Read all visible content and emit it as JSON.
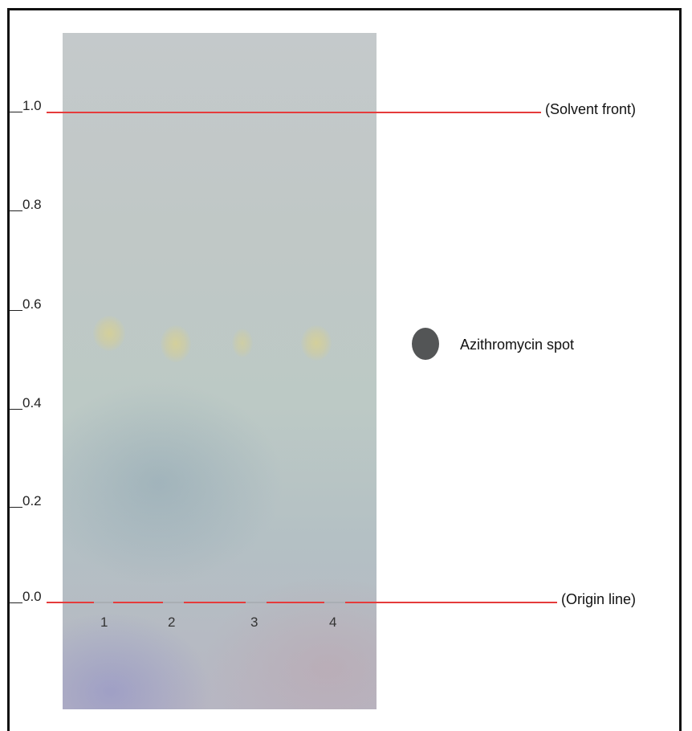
{
  "scale": {
    "ticks": [
      "1.0",
      "0.8",
      "0.6",
      "0.4",
      "0.2",
      "0.0"
    ]
  },
  "lines": {
    "solvent_front_label": "(Solvent front)",
    "origin_label": "(Origin line)"
  },
  "lanes": [
    {
      "label": "1",
      "rf": 0.53
    },
    {
      "label": "2",
      "rf": 0.52
    },
    {
      "label": "3",
      "rf": 0.52
    },
    {
      "label": "4",
      "rf": 0.52
    }
  ],
  "legend": {
    "label": "Azithromycin spot",
    "color": "#535556"
  },
  "colors": {
    "reference_line": "#e53b3b",
    "spot": "#d6d096"
  }
}
